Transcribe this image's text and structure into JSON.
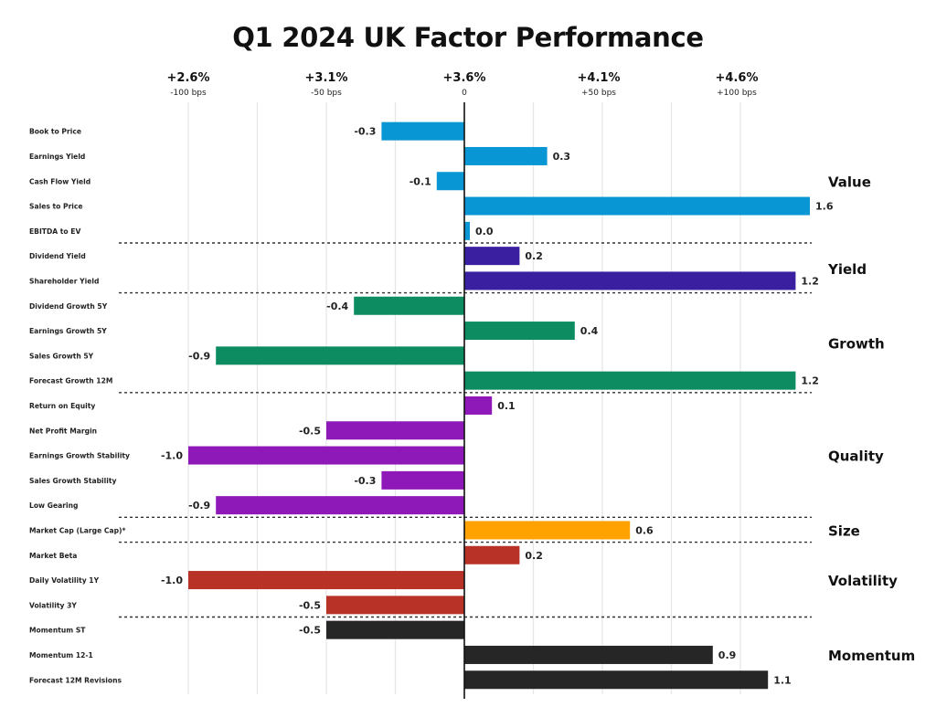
{
  "chart_data": {
    "type": "bar",
    "orientation": "horizontal",
    "title": "Q1 2024 UK Factor Performance",
    "xlabel": "",
    "ylabel": "",
    "grid": true,
    "baseline_label": "+3.6%",
    "x_ticks": [
      {
        "value": -1.0,
        "label": "+2.6%",
        "sublabel": "-100 bps"
      },
      {
        "value": -0.5,
        "label": "+3.1%",
        "sublabel": "-50 bps"
      },
      {
        "value": 0.0,
        "label": "+3.6%",
        "sublabel": "0"
      },
      {
        "value": 0.5,
        "label": "+4.1%",
        "sublabel": "+50 bps"
      },
      {
        "value": 1.0,
        "label": "+4.6%",
        "sublabel": "+100 bps"
      }
    ],
    "xlim": [
      -1.0,
      1.6
    ],
    "groups": [
      {
        "name": "Value",
        "color": "#0996D4",
        "items": [
          {
            "label": "Book to Price",
            "value": -0.3,
            "value_label": "-0.3"
          },
          {
            "label": "Earnings Yield",
            "value": 0.3,
            "value_label": "0.3"
          },
          {
            "label": "Cash Flow Yield",
            "value": -0.1,
            "value_label": "-0.1"
          },
          {
            "label": "Sales to Price",
            "value": 1.6,
            "value_label": "1.6"
          },
          {
            "label": "EBITDA to EV",
            "value": 0.02,
            "value_label": "0.0"
          }
        ]
      },
      {
        "name": "Yield",
        "color": "#3A1FA0",
        "items": [
          {
            "label": "Dividend Yield",
            "value": 0.2,
            "value_label": "0.2"
          },
          {
            "label": "Shareholder Yield",
            "value": 1.2,
            "value_label": "1.2"
          }
        ]
      },
      {
        "name": "Growth",
        "color": "#0C8C60",
        "items": [
          {
            "label": "Dividend Growth 5Y",
            "value": -0.4,
            "value_label": "-0.4"
          },
          {
            "label": "Earnings Growth 5Y",
            "value": 0.4,
            "value_label": "0.4"
          },
          {
            "label": "Sales Growth 5Y",
            "value": -0.9,
            "value_label": "-0.9"
          },
          {
            "label": "Forecast Growth 12M",
            "value": 1.2,
            "value_label": "1.2"
          }
        ]
      },
      {
        "name": "Quality",
        "color": "#8E18B8",
        "items": [
          {
            "label": "Return on Equity",
            "value": 0.1,
            "value_label": "0.1"
          },
          {
            "label": "Net Profit Margin",
            "value": -0.5,
            "value_label": "-0.5"
          },
          {
            "label": "Earnings Growth Stability",
            "value": -1.0,
            "value_label": "-1.0"
          },
          {
            "label": "Sales Growth Stability",
            "value": -0.3,
            "value_label": "-0.3"
          },
          {
            "label": "Low Gearing",
            "value": -0.9,
            "value_label": "-0.9"
          }
        ]
      },
      {
        "name": "Size",
        "color": "#FFA200",
        "items": [
          {
            "label": "Market Cap (Large Cap)*",
            "value": 0.6,
            "value_label": "0.6"
          }
        ]
      },
      {
        "name": "Volatility",
        "color": "#B83228",
        "items": [
          {
            "label": "Market Beta",
            "value": 0.2,
            "value_label": "0.2"
          },
          {
            "label": "Daily Volatility 1Y",
            "value": -1.0,
            "value_label": "-1.0"
          },
          {
            "label": "Volatility 3Y",
            "value": -0.5,
            "value_label": "-0.5"
          }
        ]
      },
      {
        "name": "Momentum",
        "color": "#262626",
        "items": [
          {
            "label": "Momentum ST",
            "value": -0.5,
            "value_label": "-0.5"
          },
          {
            "label": "Momentum 12-1",
            "value": 0.9,
            "value_label": "0.9"
          },
          {
            "label": "Forecast 12M Revisions",
            "value": 1.1,
            "value_label": "1.1"
          }
        ]
      }
    ]
  }
}
